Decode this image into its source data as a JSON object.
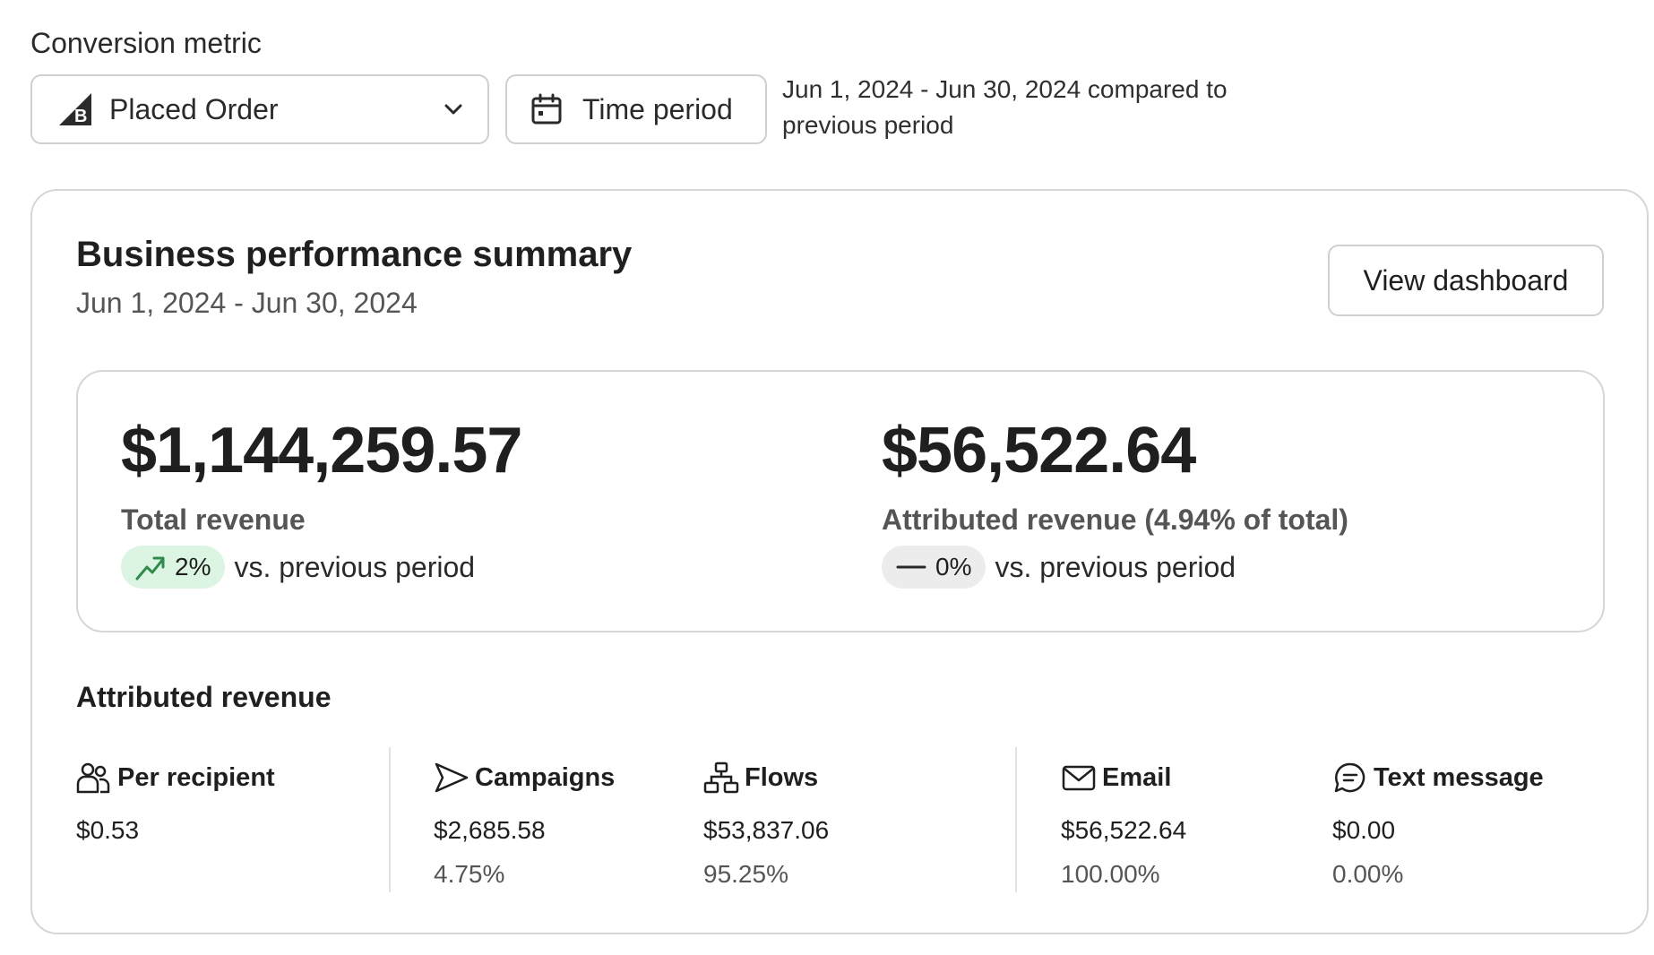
{
  "conversion_metric": {
    "label": "Conversion metric",
    "selected": "Placed Order",
    "icon": "bigcommerce-logo-icon"
  },
  "time_period": {
    "button_label": "Time period",
    "compare_text": "Jun 1, 2024 - Jun 30, 2024 compared to previous period"
  },
  "summary": {
    "title": "Business performance summary",
    "date_range": "Jun 1, 2024 - Jun 30, 2024",
    "view_dashboard_label": "View dashboard",
    "total_revenue": {
      "value": "$1,144,259.57",
      "label": "Total revenue",
      "change": "2%",
      "change_direction": "up",
      "compare": "vs. previous period",
      "pill_color": "#dcf5e2",
      "icon_color": "#2f8a4b"
    },
    "attributed_revenue": {
      "value": "$56,522.64",
      "label": "Attributed revenue (4.94% of total)",
      "change": "0%",
      "change_direction": "flat",
      "compare": "vs. previous period",
      "pill_color": "#ececec"
    }
  },
  "attributed": {
    "heading": "Attributed revenue",
    "per_recipient": {
      "label": "Per recipient",
      "value": "$0.53",
      "icon": "people-icon"
    },
    "campaigns": {
      "label": "Campaigns",
      "value": "$2,685.58",
      "pct": "4.75%",
      "icon": "send-icon"
    },
    "flows": {
      "label": "Flows",
      "value": "$53,837.06",
      "pct": "95.25%",
      "icon": "flow-icon"
    },
    "email": {
      "label": "Email",
      "value": "$56,522.64",
      "pct": "100.00%",
      "icon": "mail-icon"
    },
    "text_message": {
      "label": "Text message",
      "value": "$0.00",
      "pct": "0.00%",
      "icon": "message-icon"
    }
  }
}
